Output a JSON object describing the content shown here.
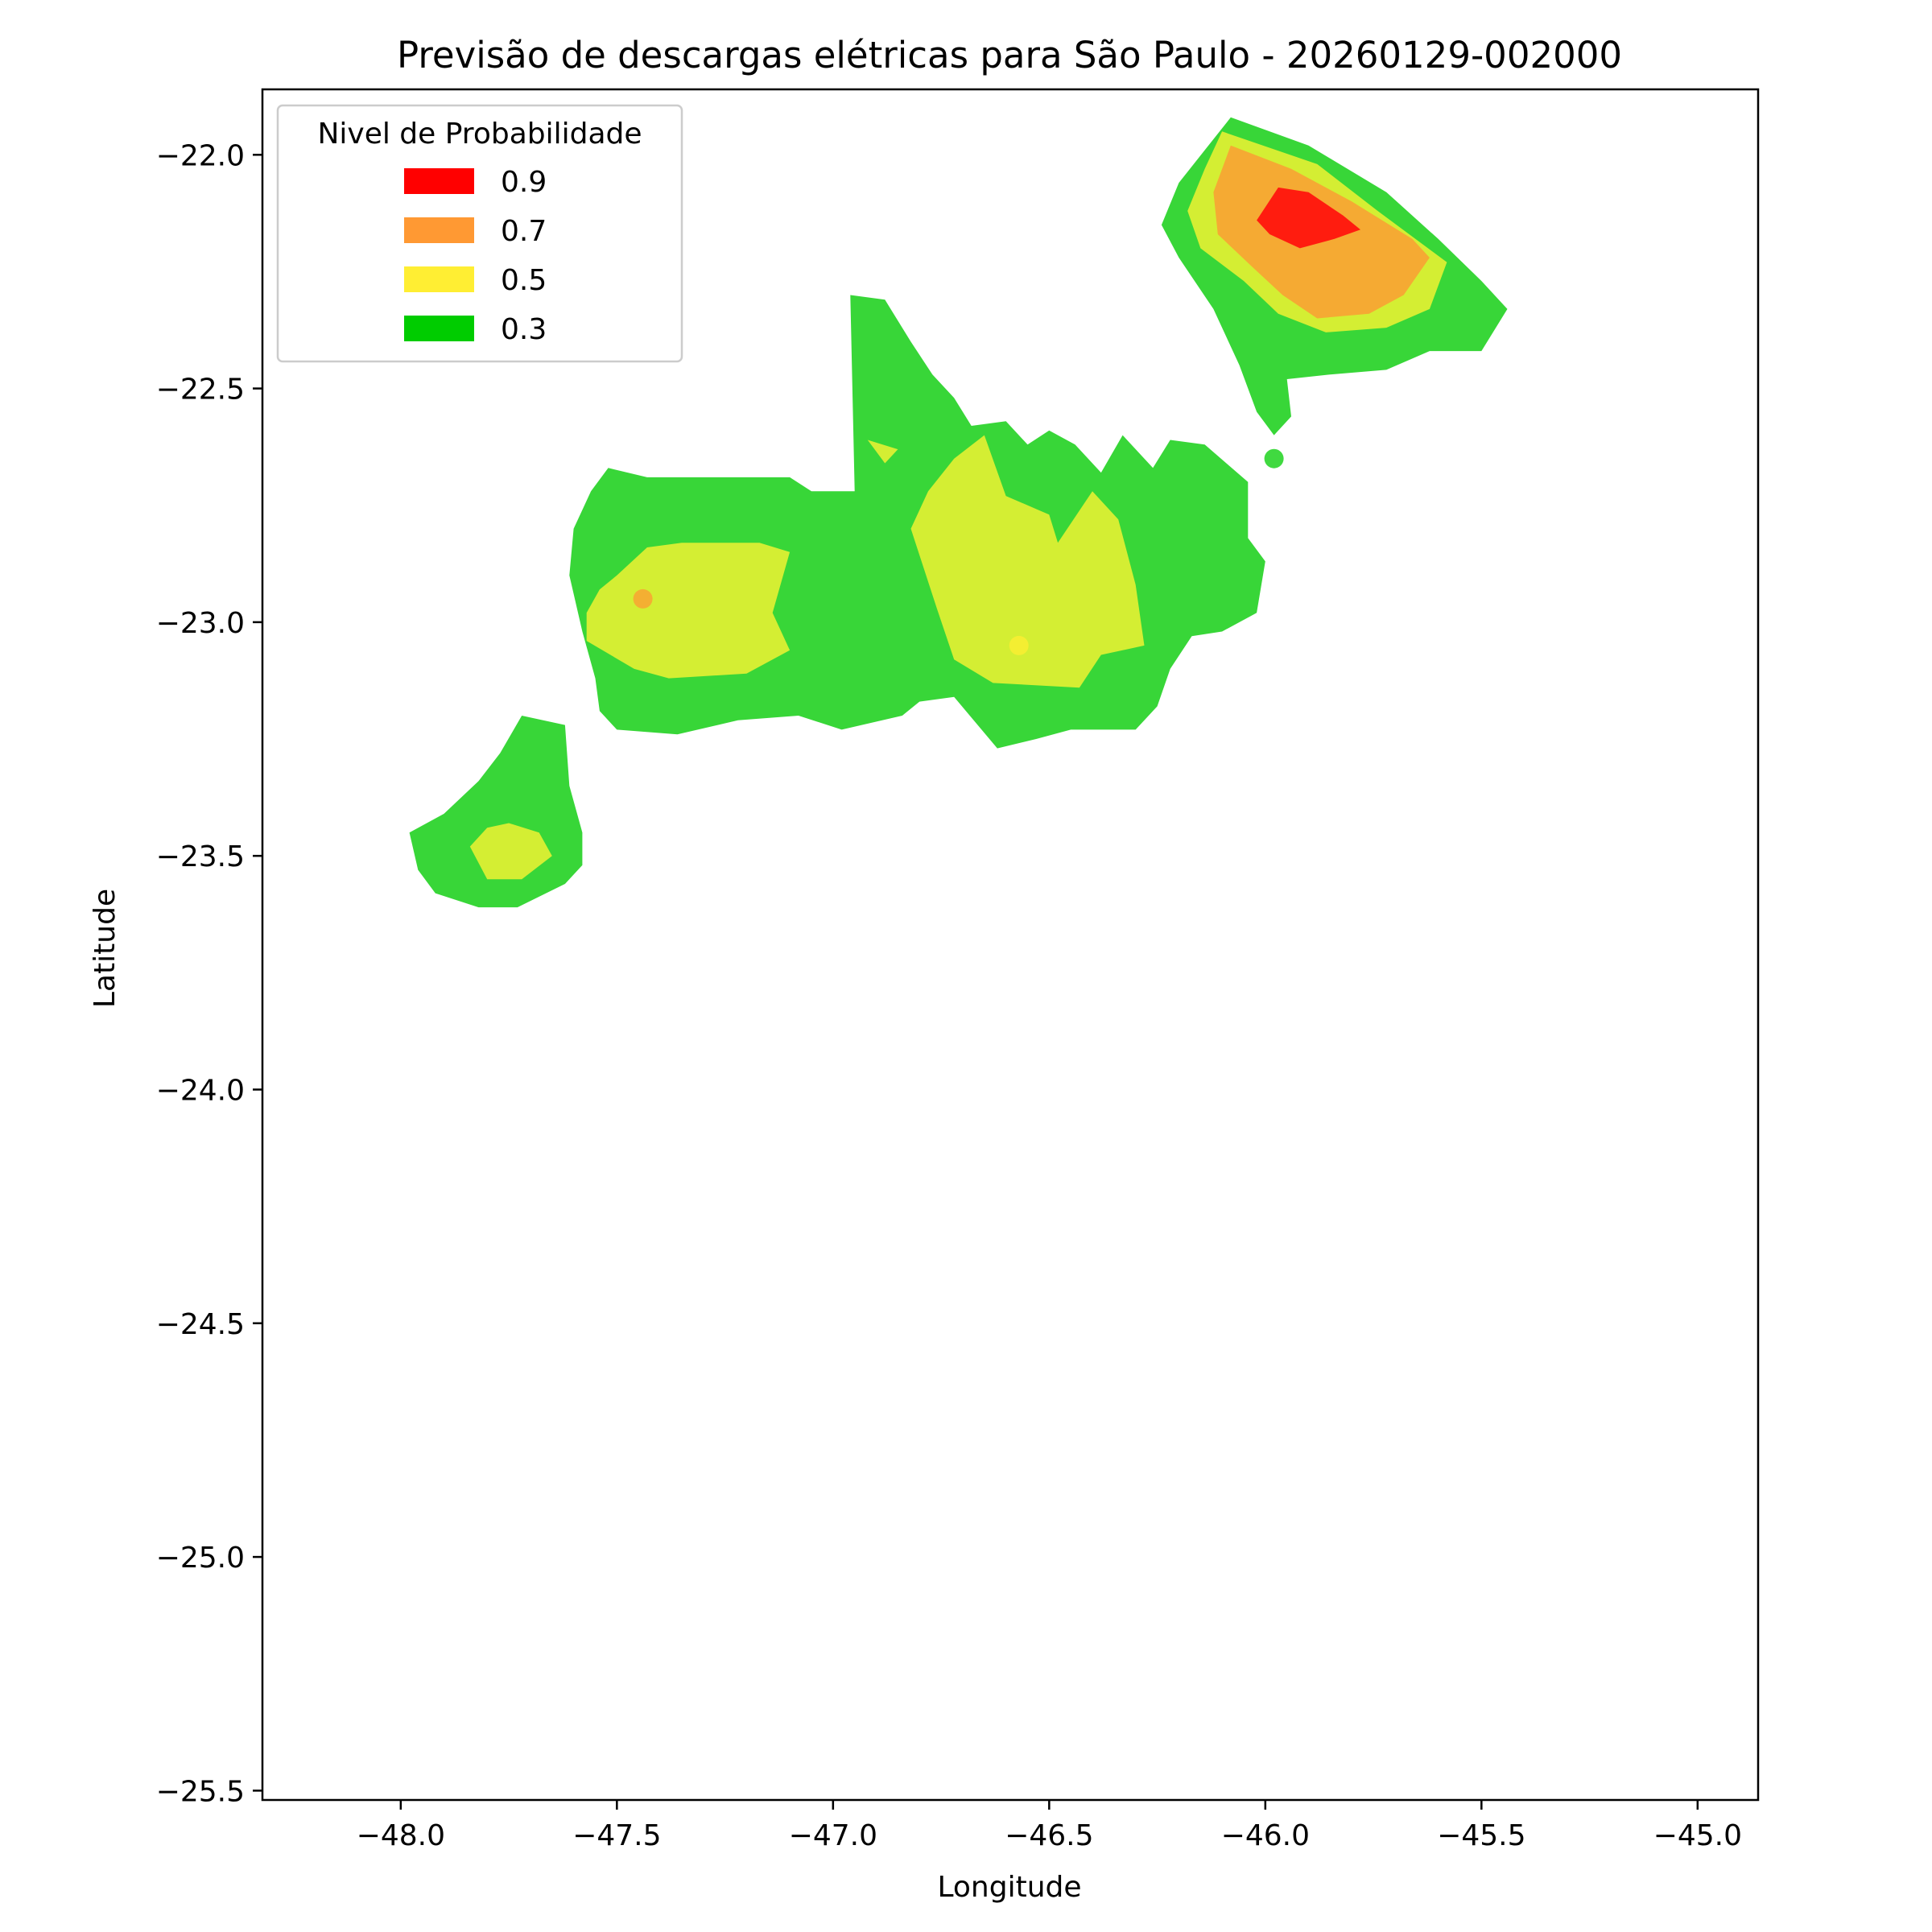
{
  "chart_data": {
    "type": "contour",
    "title": "Previsão de descargas elétricas para São Paulo - 20260129-002000",
    "xlabel": "Longitude",
    "ylabel": "Latitude",
    "xlim": [
      -48.32,
      -44.86
    ],
    "ylim": [
      -25.52,
      -21.86
    ],
    "x_ticks": [
      -48.0,
      -47.5,
      -47.0,
      -46.5,
      -46.0,
      -45.5,
      -45.0
    ],
    "x_tick_labels": [
      "−48.0",
      "−47.5",
      "−47.0",
      "−46.5",
      "−46.0",
      "−45.5",
      "−45.0"
    ],
    "y_ticks": [
      -22.0,
      -22.5,
      -23.0,
      -23.5,
      -24.0,
      -24.5,
      -25.0,
      -25.5
    ],
    "y_tick_labels": [
      "−22.0",
      "−22.5",
      "−23.0",
      "−23.5",
      "−24.0",
      "−24.5",
      "−25.0",
      "−25.5"
    ],
    "grid": false,
    "legend": {
      "title": "Nivel de Probabilidade",
      "placement": "upper-left",
      "entries": [
        {
          "label": "0.9",
          "color": "#ff0000"
        },
        {
          "label": "0.7",
          "color": "#ff9933"
        },
        {
          "label": "0.5",
          "color": "#ffee33"
        },
        {
          "label": "0.3",
          "color": "#00cc00"
        }
      ]
    },
    "fill_colors": {
      "0.3": "#38d638",
      "0.5": "#d4ee33",
      "0.7": "#f5aa33",
      "0.9": "#ff1c0f"
    },
    "regions": [
      {
        "level": "0.3",
        "polygon": [
          [
            -46.08,
            -21.92
          ],
          [
            -45.9,
            -21.98
          ],
          [
            -45.72,
            -22.08
          ],
          [
            -45.6,
            -22.18
          ],
          [
            -45.5,
            -22.27
          ],
          [
            -45.44,
            -22.33
          ],
          [
            -45.5,
            -22.42
          ],
          [
            -45.62,
            -22.42
          ],
          [
            -45.72,
            -22.46
          ],
          [
            -45.85,
            -22.47
          ],
          [
            -45.95,
            -22.48
          ],
          [
            -45.94,
            -22.56
          ],
          [
            -45.98,
            -22.6
          ],
          [
            -46.02,
            -22.55
          ],
          [
            -46.06,
            -22.45
          ],
          [
            -46.12,
            -22.33
          ],
          [
            -46.2,
            -22.22
          ],
          [
            -46.24,
            -22.15
          ],
          [
            -46.2,
            -22.06
          ],
          [
            -46.14,
            -21.99
          ]
        ]
      },
      {
        "level": "0.5",
        "polygon": [
          [
            -46.1,
            -21.95
          ],
          [
            -45.88,
            -22.02
          ],
          [
            -45.74,
            -22.12
          ],
          [
            -45.58,
            -22.23
          ],
          [
            -45.62,
            -22.33
          ],
          [
            -45.72,
            -22.37
          ],
          [
            -45.86,
            -22.38
          ],
          [
            -45.97,
            -22.34
          ],
          [
            -46.05,
            -22.27
          ],
          [
            -46.15,
            -22.2
          ],
          [
            -46.18,
            -22.12
          ],
          [
            -46.14,
            -22.03
          ]
        ]
      },
      {
        "level": "0.7",
        "polygon": [
          [
            -46.08,
            -21.98
          ],
          [
            -45.94,
            -22.03
          ],
          [
            -45.8,
            -22.1
          ],
          [
            -45.66,
            -22.18
          ],
          [
            -45.62,
            -22.22
          ],
          [
            -45.68,
            -22.3
          ],
          [
            -45.76,
            -22.34
          ],
          [
            -45.88,
            -22.35
          ],
          [
            -45.96,
            -22.3
          ],
          [
            -46.03,
            -22.24
          ],
          [
            -46.11,
            -22.17
          ],
          [
            -46.12,
            -22.08
          ]
        ]
      },
      {
        "level": "0.9",
        "polygon": [
          [
            -45.97,
            -22.07
          ],
          [
            -45.9,
            -22.08
          ],
          [
            -45.82,
            -22.13
          ],
          [
            -45.78,
            -22.16
          ],
          [
            -45.84,
            -22.18
          ],
          [
            -45.92,
            -22.2
          ],
          [
            -45.99,
            -22.17
          ],
          [
            -46.02,
            -22.14
          ]
        ]
      },
      {
        "level": "0.3",
        "polygon": [
          [
            -47.52,
            -22.67
          ],
          [
            -47.43,
            -22.69
          ],
          [
            -47.1,
            -22.69
          ],
          [
            -47.05,
            -22.72
          ],
          [
            -46.95,
            -22.72
          ],
          [
            -46.96,
            -22.3
          ],
          [
            -46.88,
            -22.31
          ],
          [
            -46.82,
            -22.4
          ],
          [
            -46.77,
            -22.47
          ],
          [
            -46.72,
            -22.52
          ],
          [
            -46.68,
            -22.58
          ],
          [
            -46.6,
            -22.57
          ],
          [
            -46.55,
            -22.62
          ],
          [
            -46.5,
            -22.59
          ],
          [
            -46.44,
            -22.62
          ],
          [
            -46.38,
            -22.68
          ],
          [
            -46.33,
            -22.6
          ],
          [
            -46.26,
            -22.67
          ],
          [
            -46.22,
            -22.61
          ],
          [
            -46.14,
            -22.62
          ],
          [
            -46.04,
            -22.7
          ],
          [
            -46.04,
            -22.82
          ],
          [
            -46.0,
            -22.87
          ],
          [
            -46.02,
            -22.98
          ],
          [
            -46.1,
            -23.02
          ],
          [
            -46.17,
            -23.03
          ],
          [
            -46.22,
            -23.1
          ],
          [
            -46.25,
            -23.18
          ],
          [
            -46.3,
            -23.23
          ],
          [
            -46.45,
            -23.23
          ],
          [
            -46.53,
            -23.25
          ],
          [
            -46.62,
            -23.27
          ],
          [
            -46.72,
            -23.16
          ],
          [
            -46.8,
            -23.17
          ],
          [
            -46.84,
            -23.2
          ],
          [
            -46.98,
            -23.23
          ],
          [
            -47.08,
            -23.2
          ],
          [
            -47.22,
            -23.21
          ],
          [
            -47.36,
            -23.24
          ],
          [
            -47.5,
            -23.23
          ],
          [
            -47.54,
            -23.19
          ],
          [
            -47.55,
            -23.12
          ],
          [
            -47.58,
            -23.02
          ],
          [
            -47.61,
            -22.9
          ],
          [
            -47.6,
            -22.8
          ],
          [
            -47.56,
            -22.72
          ]
        ]
      },
      {
        "level": "0.5",
        "polygon": [
          [
            -47.43,
            -22.84
          ],
          [
            -47.35,
            -22.83
          ],
          [
            -47.17,
            -22.83
          ],
          [
            -47.1,
            -22.85
          ],
          [
            -47.14,
            -22.98
          ],
          [
            -47.1,
            -23.06
          ],
          [
            -47.2,
            -23.11
          ],
          [
            -47.38,
            -23.12
          ],
          [
            -47.46,
            -23.1
          ],
          [
            -47.57,
            -23.04
          ],
          [
            -47.57,
            -22.98
          ],
          [
            -47.54,
            -22.93
          ],
          [
            -47.5,
            -22.9
          ]
        ]
      },
      {
        "level": "0.5",
        "polygon": [
          [
            -46.72,
            -22.65
          ],
          [
            -46.65,
            -22.6
          ],
          [
            -46.6,
            -22.73
          ],
          [
            -46.5,
            -22.77
          ],
          [
            -46.48,
            -22.83
          ],
          [
            -46.4,
            -22.72
          ],
          [
            -46.34,
            -22.78
          ],
          [
            -46.3,
            -22.92
          ],
          [
            -46.28,
            -23.05
          ],
          [
            -46.38,
            -23.07
          ],
          [
            -46.43,
            -23.14
          ],
          [
            -46.63,
            -23.13
          ],
          [
            -46.72,
            -23.08
          ],
          [
            -46.76,
            -22.97
          ],
          [
            -46.82,
            -22.8
          ],
          [
            -46.78,
            -22.72
          ]
        ]
      },
      {
        "level": "0.5",
        "polygon": [
          [
            -46.92,
            -22.61
          ],
          [
            -46.85,
            -22.63
          ],
          [
            -46.88,
            -22.66
          ]
        ]
      },
      {
        "level": "0.3",
        "polygon": [
          [
            -47.72,
            -23.2
          ],
          [
            -47.62,
            -23.22
          ],
          [
            -47.61,
            -23.35
          ],
          [
            -47.58,
            -23.45
          ],
          [
            -47.58,
            -23.52
          ],
          [
            -47.62,
            -23.56
          ],
          [
            -47.73,
            -23.61
          ],
          [
            -47.82,
            -23.61
          ],
          [
            -47.92,
            -23.58
          ],
          [
            -47.96,
            -23.53
          ],
          [
            -47.98,
            -23.45
          ],
          [
            -47.9,
            -23.41
          ],
          [
            -47.82,
            -23.34
          ],
          [
            -47.77,
            -23.28
          ]
        ]
      },
      {
        "level": "0.5",
        "polygon": [
          [
            -47.75,
            -23.43
          ],
          [
            -47.68,
            -23.45
          ],
          [
            -47.65,
            -23.5
          ],
          [
            -47.72,
            -23.55
          ],
          [
            -47.8,
            -23.55
          ],
          [
            -47.84,
            -23.48
          ],
          [
            -47.8,
            -23.44
          ]
        ]
      }
    ],
    "markers": [
      {
        "lon": -47.44,
        "lat": -22.95,
        "color": "#ff9933"
      },
      {
        "lon": -46.57,
        "lat": -23.05,
        "color": "#ffee33"
      },
      {
        "lon": -45.98,
        "lat": -22.65,
        "color": "#00cc00"
      }
    ]
  }
}
